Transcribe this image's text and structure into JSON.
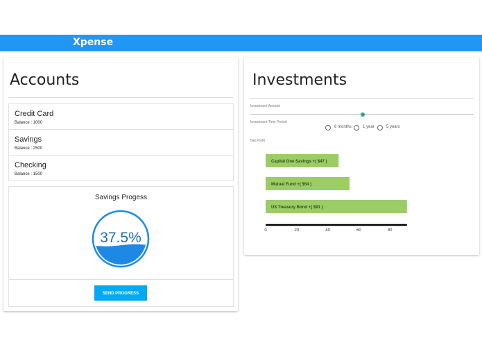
{
  "app": {
    "brand": "Xpense",
    "accent": "#2196f3"
  },
  "accounts": {
    "title": "Accounts",
    "items": [
      {
        "name": "Credit Card",
        "balance": "Balance : 1000"
      },
      {
        "name": "Savings",
        "balance": "Balance : 2500"
      },
      {
        "name": "Checking",
        "balance": "Balance : 1500"
      }
    ],
    "savings_progress": {
      "title": "Savings Progess",
      "value_label": "37.5%",
      "fill_fraction": 0.375,
      "button": "SEND PROGRESS"
    }
  },
  "investments": {
    "title": "Investments",
    "amount_label": "Investment Amount",
    "amount_slider_fraction": 0.5,
    "period_label": "Investment Time Period",
    "period_options": [
      "6 months",
      "1 year",
      "5 years"
    ],
    "net_profit_label": "Net Profit",
    "bar_color": "#9ccc65"
  },
  "chart_data": {
    "type": "bar",
    "orientation": "horizontal",
    "categories": [
      "Capital One Savings +( $47 )",
      "Mutual Fund +( $54 )",
      "US Treasury Bond +( $91 )"
    ],
    "values": [
      47,
      54,
      91
    ],
    "xlim": [
      0,
      91
    ],
    "x_ticks": [
      "0",
      "20",
      "40",
      "60",
      "80"
    ],
    "grid": false,
    "legend": "none"
  }
}
